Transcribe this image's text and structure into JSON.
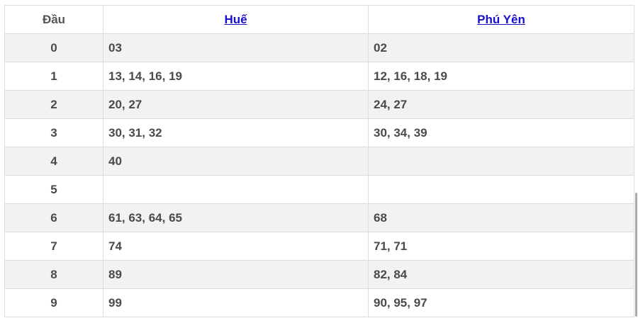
{
  "header": {
    "dau": "Đầu",
    "col1": "Huế",
    "col2": "Phú Yên"
  },
  "rows": [
    {
      "dau": "0",
      "c1": "03",
      "c2": "02"
    },
    {
      "dau": "1",
      "c1": "13, 14, 16, 19",
      "c2": "12, 16, 18, 19"
    },
    {
      "dau": "2",
      "c1": "20, 27",
      "c2": "24, 27"
    },
    {
      "dau": "3",
      "c1": "30, 31, 32",
      "c2": "30, 34, 39"
    },
    {
      "dau": "4",
      "c1": "40",
      "c2": ""
    },
    {
      "dau": "5",
      "c1": "",
      "c2": ""
    },
    {
      "dau": "6",
      "c1": "61, 63, 64, 65",
      "c2": "68"
    },
    {
      "dau": "7",
      "c1": "74",
      "c2": "71, 71"
    },
    {
      "dau": "8",
      "c1": "89",
      "c2": "82, 84"
    },
    {
      "dau": "9",
      "c1": "99",
      "c2": "90, 95, 97"
    }
  ]
}
